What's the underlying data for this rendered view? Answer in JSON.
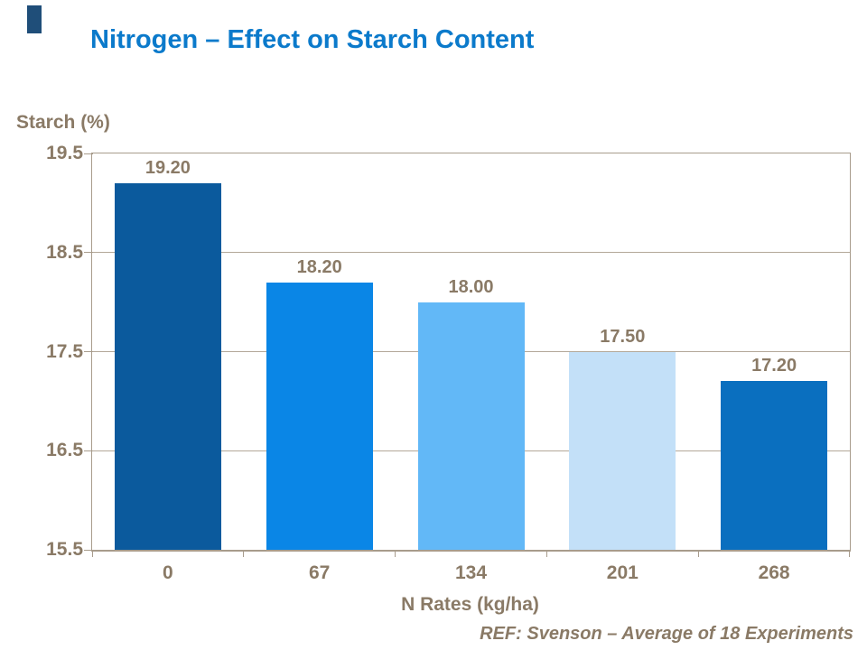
{
  "accent_color": "#1F4E79",
  "header": {
    "title": "Nitrogen – Effect on Starch Content",
    "title_color": "#0B7ACB"
  },
  "chart_data": {
    "type": "bar",
    "title": "Nitrogen – Effect on Starch Content",
    "categories": [
      "0",
      "67",
      "134",
      "201",
      "268"
    ],
    "values": [
      19.2,
      18.2,
      18.0,
      17.5,
      17.2
    ],
    "value_labels": [
      "19.20",
      "18.20",
      "18.00",
      "17.50",
      "17.20"
    ],
    "bar_colors": [
      "#0B5A9D",
      "#0A86E6",
      "#62B8F7",
      "#C3E0F8",
      "#0A6FBF"
    ],
    "xlabel": "N Rates (kg/ha)",
    "ylabel": "Starch (%)",
    "ylim": [
      15.5,
      19.5
    ],
    "yticks": [
      19.5,
      18.5,
      17.5,
      16.5,
      15.5
    ],
    "ytick_labels": [
      "19.5",
      "18.5",
      "17.5",
      "16.5",
      "15.5"
    ],
    "grid": true,
    "legend": false,
    "label_color": "#8A7A66",
    "grid_color": "#B3A899",
    "axis_color": "#A89C8C"
  },
  "footer": {
    "ref": "REF: Svenson – Average of 18 Experiments"
  }
}
